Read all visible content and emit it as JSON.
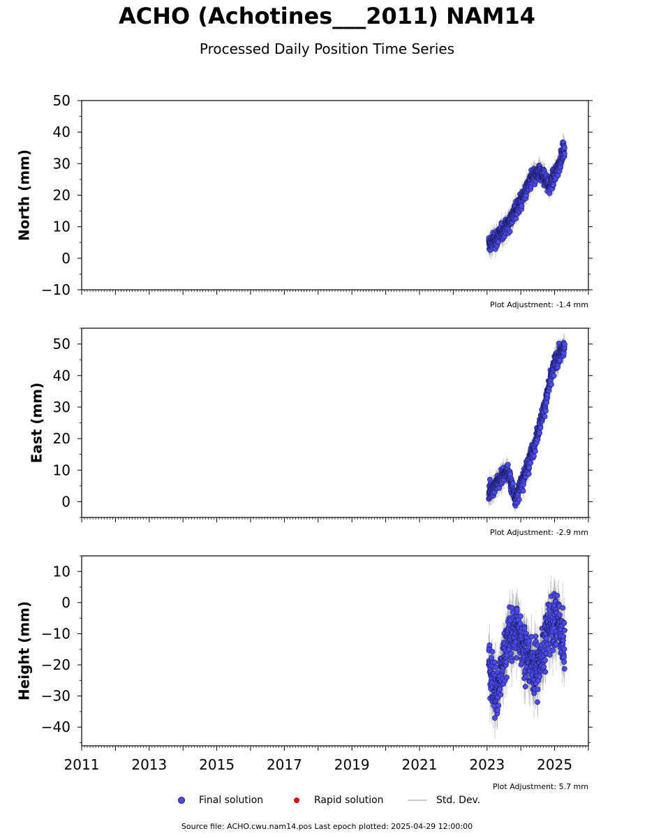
{
  "title": "ACHO (Achotines___2011) NAM14",
  "subtitle": "Processed Daily Position Time Series",
  "colors": {
    "final": "#4b4bf0",
    "final_edge": "#1a1a5a",
    "rapid": "#e00000",
    "stddev": "#999999"
  },
  "legend": {
    "final": "Final solution",
    "rapid": "Rapid solution",
    "stddev": "Std. Dev."
  },
  "footer": "Source file: ACHO.cwu.nam14.pos  Last epoch plotted: 2025-04-29 12:00:00",
  "chart_data": [
    {
      "type": "scatter",
      "ylabel": "North (mm)",
      "ylim": [
        -10,
        50
      ],
      "yticks": [
        -10,
        0,
        10,
        20,
        30,
        40,
        50
      ],
      "ytick_labels": [
        "−10",
        "0",
        "10",
        "20",
        "30",
        "40",
        "50"
      ],
      "xlim": [
        2011,
        2026
      ],
      "adjustment": "Plot Adjustment: -1.4 mm",
      "series": [
        {
          "x": [
            2023.05,
            2023.5,
            2024.0,
            2024.3,
            2024.6,
            2024.85,
            2025.0,
            2025.3
          ],
          "y": [
            4,
            9,
            18,
            25,
            27,
            23,
            26,
            35
          ]
        }
      ]
    },
    {
      "type": "scatter",
      "ylabel": "East (mm)",
      "ylim": [
        -5,
        55
      ],
      "yticks": [
        0,
        10,
        20,
        30,
        40,
        50
      ],
      "ytick_labels": [
        "0",
        "10",
        "20",
        "30",
        "40",
        "50"
      ],
      "xlim": [
        2011,
        2026
      ],
      "adjustment": "Plot Adjustment: -2.9 mm",
      "series": [
        {
          "x": [
            2023.05,
            2023.3,
            2023.6,
            2023.85,
            2024.1,
            2024.4,
            2024.7,
            2025.0,
            2025.3
          ],
          "y": [
            3,
            6,
            10,
            1,
            8,
            18,
            30,
            44,
            49
          ]
        }
      ]
    },
    {
      "type": "scatter",
      "ylabel": "Height (mm)",
      "ylim": [
        -46,
        15
      ],
      "yticks": [
        -40,
        -30,
        -20,
        -10,
        0,
        10
      ],
      "ytick_labels": [
        "−40",
        "−30",
        "−20",
        "−10",
        "0",
        "10"
      ],
      "xlim": [
        2011,
        2026
      ],
      "xticks": [
        2011,
        2013,
        2015,
        2017,
        2019,
        2021,
        2023,
        2025
      ],
      "adjustment": "Plot Adjustment: 5.7 mm",
      "series": [
        {
          "x": [
            2023.05,
            2023.3,
            2023.6,
            2023.9,
            2024.2,
            2024.5,
            2024.8,
            2025.1,
            2025.3
          ],
          "y": [
            -20,
            -30,
            -12,
            -8,
            -18,
            -22,
            -8,
            -5,
            -15
          ]
        }
      ]
    }
  ]
}
